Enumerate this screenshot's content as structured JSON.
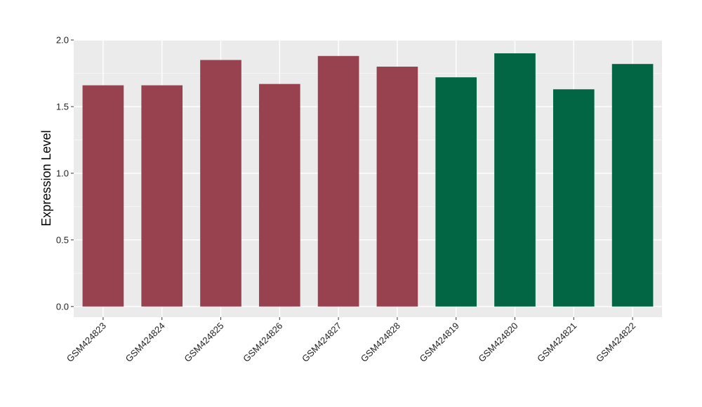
{
  "chart_data": {
    "type": "bar",
    "title": "",
    "xlabel": "",
    "ylabel": "Expression Level",
    "ylim": [
      -0.08,
      2.0
    ],
    "yticks": [
      0.0,
      0.5,
      1.0,
      1.5,
      2.0
    ],
    "ytick_labels": [
      "0.0",
      "0.5",
      "1.0",
      "1.5",
      "2.0"
    ],
    "categories": [
      "GSM424823",
      "GSM424824",
      "GSM424825",
      "GSM424826",
      "GSM424827",
      "GSM424828",
      "GSM424819",
      "GSM424820",
      "GSM424821",
      "GSM424822"
    ],
    "values": [
      1.66,
      1.66,
      1.85,
      1.67,
      1.88,
      1.8,
      1.72,
      1.9,
      1.63,
      1.82
    ],
    "bar_colors": [
      "#98414f",
      "#98414f",
      "#98414f",
      "#98414f",
      "#98414f",
      "#98414f",
      "#026644",
      "#026644",
      "#026644",
      "#026644"
    ],
    "grid": true,
    "panel_background": "#ebebeb",
    "legend": "none"
  }
}
